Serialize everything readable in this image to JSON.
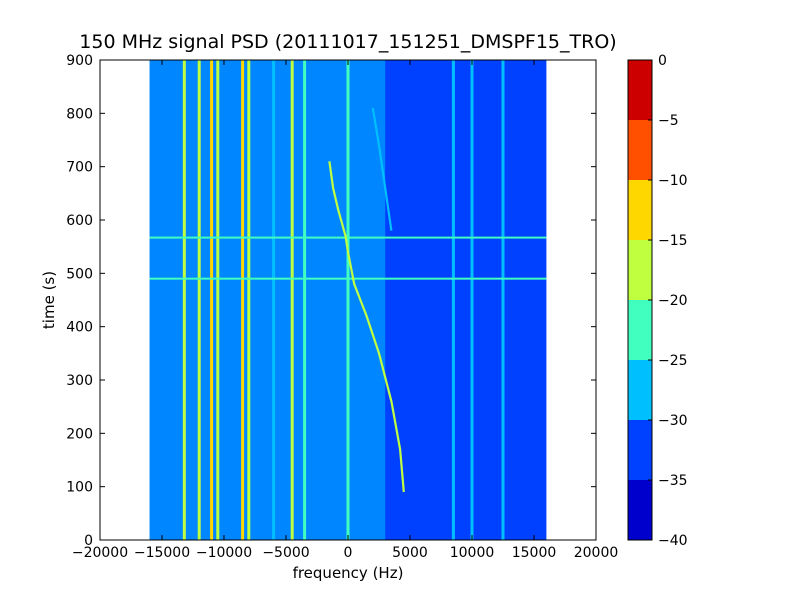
{
  "chart_data": {
    "type": "heatmap",
    "title": "150 MHz signal PSD (20111017_151251_DMSPF15_TRO)",
    "xlabel": "frequency (Hz)",
    "ylabel": "time (s)",
    "xlim": [
      -20000,
      20000
    ],
    "ylim": [
      0,
      900
    ],
    "x_ticks": [
      -20000,
      -15000,
      -10000,
      -5000,
      0,
      5000,
      10000,
      15000,
      20000
    ],
    "y_ticks": [
      0,
      100,
      200,
      300,
      400,
      500,
      600,
      700,
      800,
      900
    ],
    "data_extent_x": [
      -16000,
      16000
    ],
    "colorbar": {
      "levels": [
        -40,
        -35,
        -30,
        -25,
        -20,
        -15,
        -10,
        -5,
        0
      ],
      "colors": [
        "#0000cd",
        "#0040ff",
        "#00bfff",
        "#40ffbf",
        "#bfff40",
        "#ffd700",
        "#ff5000",
        "#cd0000"
      ],
      "tick_labels": [
        "0",
        "−5",
        "−10",
        "−15",
        "−20",
        "−25",
        "−30",
        "−35",
        "−40"
      ]
    },
    "background_level": -32,
    "vertical_lines": [
      {
        "freq": -13200,
        "level": -18
      },
      {
        "freq": -12000,
        "level": -20
      },
      {
        "freq": -11000,
        "level": -14
      },
      {
        "freq": -10500,
        "level": -20
      },
      {
        "freq": -8500,
        "level": -13
      },
      {
        "freq": -8000,
        "level": -18
      },
      {
        "freq": -6000,
        "level": -27
      },
      {
        "freq": -4500,
        "level": -20
      },
      {
        "freq": -3500,
        "level": -23
      },
      {
        "freq": 0,
        "level": -23
      },
      {
        "freq": 8500,
        "level": -27
      },
      {
        "freq": 10000,
        "level": -28
      },
      {
        "freq": 12500,
        "level": -27
      }
    ],
    "horizontal_lines": [
      {
        "time": 490,
        "level": -25
      },
      {
        "time": 567,
        "level": -25
      }
    ],
    "doppler_traces": [
      {
        "name": "",
        "level": -20,
        "points": [
          [
            -1500,
            710
          ],
          [
            -1200,
            660
          ],
          [
            -800,
            620
          ],
          [
            -200,
            570
          ],
          [
            0,
            540
          ],
          [
            500,
            480
          ],
          [
            1500,
            420
          ],
          [
            2500,
            350
          ],
          [
            3500,
            260
          ],
          [
            4200,
            170
          ],
          [
            4500,
            90
          ]
        ]
      },
      {
        "name": "",
        "level": -27,
        "points": [
          [
            2000,
            810
          ],
          [
            2500,
            740
          ],
          [
            3000,
            660
          ],
          [
            3500,
            580
          ]
        ]
      }
    ]
  }
}
